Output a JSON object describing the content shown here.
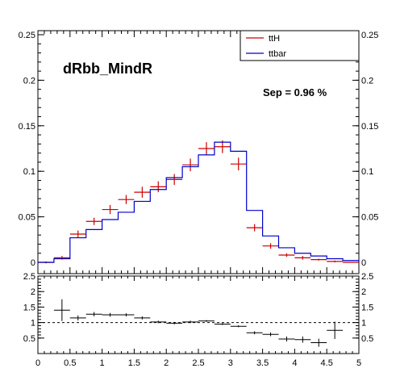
{
  "chart_data": [
    {
      "type": "histogram",
      "title": "dRbb_MindR",
      "annotation": "Sep = 0.96 %",
      "xlim": [
        0,
        5
      ],
      "ylim": [
        0,
        0.25
      ],
      "x_ticks": [
        "0",
        "0.5",
        "1",
        "1.5",
        "2",
        "2.5",
        "3",
        "3.5",
        "4",
        "4.5",
        "5"
      ],
      "y_ticks": [
        "0",
        "0.05",
        "0.1",
        "0.15",
        "0.2",
        "0.25"
      ],
      "bin_edges": [
        0,
        0.25,
        0.5,
        0.75,
        1.0,
        1.25,
        1.5,
        1.75,
        2.0,
        2.25,
        2.5,
        2.75,
        3.0,
        3.25,
        3.5,
        3.75,
        4.0,
        4.25,
        4.5,
        4.75,
        5.0
      ],
      "legend_position": "top-right",
      "series": [
        {
          "name": "ttH",
          "color": "#cc0000",
          "style": "errorbar",
          "values": [
            0.0,
            0.005,
            0.031,
            0.045,
            0.058,
            0.069,
            0.077,
            0.083,
            0.091,
            0.107,
            0.125,
            0.127,
            0.108,
            0.038,
            0.018,
            0.008,
            0.005,
            0.003,
            0.001,
            0.0
          ],
          "errors": [
            0.001,
            0.002,
            0.004,
            0.004,
            0.005,
            0.005,
            0.006,
            0.006,
            0.006,
            0.007,
            0.007,
            0.007,
            0.007,
            0.004,
            0.003,
            0.002,
            0.002,
            0.001,
            0.001,
            0.0
          ]
        },
        {
          "name": "ttbar",
          "color": "#0000cc",
          "style": "step",
          "values": [
            0.0,
            0.004,
            0.027,
            0.036,
            0.047,
            0.055,
            0.067,
            0.08,
            0.093,
            0.105,
            0.118,
            0.132,
            0.122,
            0.057,
            0.029,
            0.016,
            0.01,
            0.007,
            0.004,
            0.002
          ]
        }
      ]
    },
    {
      "type": "ratio",
      "xlim": [
        0,
        5
      ],
      "ylim": [
        0,
        2.5
      ],
      "x_ticks": [
        "0",
        "0.5",
        "1",
        "1.5",
        "2",
        "2.5",
        "3",
        "3.5",
        "4",
        "4.5",
        "5"
      ],
      "y_ticks": [
        "0.5",
        "1",
        "1.5",
        "2",
        "2.5"
      ],
      "reference_line": 1,
      "x": [
        0.375,
        0.625,
        0.875,
        1.125,
        1.375,
        1.625,
        1.875,
        2.125,
        2.375,
        2.625,
        2.875,
        3.125,
        3.375,
        3.625,
        3.875,
        4.125,
        4.375,
        4.625
      ],
      "values": [
        1.4,
        1.15,
        1.27,
        1.25,
        1.25,
        1.15,
        1.02,
        0.98,
        1.02,
        1.05,
        0.95,
        0.88,
        0.67,
        0.62,
        0.47,
        0.45,
        0.35,
        0.75
      ],
      "errors": [
        0.35,
        0.08,
        0.07,
        0.06,
        0.05,
        0.05,
        0.04,
        0.04,
        0.04,
        0.03,
        0.03,
        0.03,
        0.05,
        0.06,
        0.08,
        0.1,
        0.13,
        0.28
      ]
    }
  ],
  "colors": {
    "axis": "#000000",
    "ttH": "#cc0000",
    "ttbar": "#0000cc"
  }
}
